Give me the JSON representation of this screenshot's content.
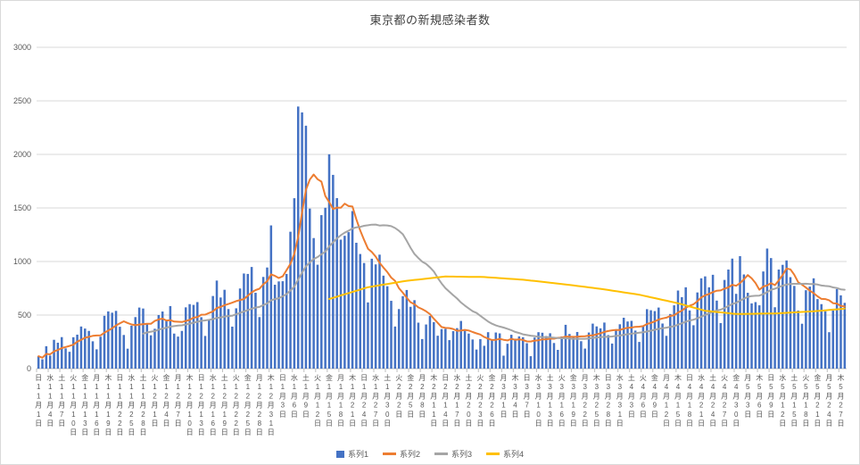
{
  "chart_data": {
    "type": "bar+line",
    "title": "東京都の新規感染者数",
    "grid": true,
    "legend_position": "bottom",
    "y_axis": {
      "min": 0,
      "max": 3000,
      "step": 500,
      "tick_labels": [
        "0",
        "500",
        "1000",
        "1500",
        "2000",
        "2500",
        "3000"
      ]
    },
    "x_axis": {
      "n_points": 209,
      "tick_every_days": 3,
      "tick_dows": "日水土火金月木日水土火金月木日水土火金月木日水土火金月木日水土火金月木日水土火金月木日水土火金月木日水土火金月木日水土火金月木日水土火金月木",
      "tick_dates": [
        "11月1日",
        "11月4日",
        "11月7日",
        "11月10日",
        "11月13日",
        "11月16日",
        "11月19日",
        "11月22日",
        "11月25日",
        "11月28日",
        "12月1日",
        "12月4日",
        "12月7日",
        "12月10日",
        "12月13日",
        "12月16日",
        "12月19日",
        "12月22日",
        "12月25日",
        "12月28日",
        "12月31日",
        "1月3日",
        "1月6日",
        "1月9日",
        "1月12日",
        "1月15日",
        "1月18日",
        "1月21日",
        "1月24日",
        "1月27日",
        "1月30日",
        "2月2日",
        "2月5日",
        "2月8日",
        "2月11日",
        "2月14日",
        "2月17日",
        "2月20日",
        "2月23日",
        "2月26日",
        "3月1日",
        "3月4日",
        "3月7日",
        "3月10日",
        "3月13日",
        "3月16日",
        "3月19日",
        "3月22日",
        "3月25日",
        "3月28日",
        "3月31日",
        "4月3日",
        "4月6日",
        "4月9日",
        "4月12日",
        "4月15日",
        "4月18日",
        "4月21日",
        "4月24日",
        "4月27日",
        "4月30日",
        "5月3日",
        "5月6日",
        "5月9日",
        "5月12日",
        "5月15日",
        "5月18日",
        "5月21日",
        "5月24日",
        "5月27日"
      ]
    },
    "series": [
      {
        "name": "系列1",
        "type": "bar",
        "color": "#4472C4",
        "values": [
          116,
          87,
          209,
          122,
          269,
          242,
          294,
          189,
          157,
          293,
          317,
          393,
          374,
          352,
          255,
          180,
          298,
          493,
          534,
          522,
          539,
          391,
          314,
          186,
          401,
          481,
          570,
          561,
          418,
          311,
          372,
          500,
          533,
          449,
          584,
          327,
          299,
          352,
          572,
          602,
          595,
          621,
          480,
          305,
          460,
          678,
          822,
          664,
          736,
          556,
          392,
          563,
          748,
          888,
          884,
          949,
          708,
          481,
          856,
          944,
          1337,
          783,
          814,
          816,
          884,
          1278,
          1591,
          2447,
          2392,
          2268,
          1494,
          1219,
          970,
          1433,
          1502,
          2001,
          1809,
          1592,
          1204,
          1240,
          1274,
          1471,
          1175,
          1070,
          986,
          618,
          1026,
          973,
          1064,
          868,
          769,
          633,
          393,
          556,
          676,
          734,
          577,
          639,
          429,
          276,
          412,
          491,
          434,
          307,
          369,
          371,
          266,
          350,
          378,
          445,
          353,
          327,
          272,
          178,
          275,
          213,
          340,
          270,
          337,
          329,
          121,
          232,
          316,
          279,
          301,
          293,
          237,
          116,
          290,
          340,
          335,
          304,
          330,
          239,
          175,
          300,
          409,
          323,
          303,
          342,
          256,
          187,
          337,
          420,
          394,
          376,
          430,
          313,
          234,
          364,
          414,
          475,
          440,
          446,
          355,
          249,
          399,
          555,
          545,
          537,
          570,
          421,
          306,
          510,
          591,
          729,
          667,
          759,
          543,
          405,
          711,
          843,
          861,
          759,
          876,
          635,
          425,
          828,
          925,
          1027,
          698,
          1050,
          879,
          708,
          609,
          621,
          591,
          907,
          1121,
          1032,
          573,
          925,
          969,
          1010,
          854,
          772,
          542,
          419,
          732,
          766,
          843,
          649,
          602,
          535,
          340,
          542,
          743,
          684,
          614
        ]
      },
      {
        "name": "系列2",
        "type": "line",
        "color": "#ED7D31",
        "derivation": "7-day moving average of 系列1"
      },
      {
        "name": "系列3",
        "type": "line",
        "color": "#A5A5A5",
        "derivation": "28-day moving average of 系列1"
      },
      {
        "name": "系列4",
        "type": "line",
        "color": "#FFC000",
        "derivation": "piecewise-linear through anchor points [day_index, value]",
        "anchor_points": [
          [
            75,
            650
          ],
          [
            85,
            760
          ],
          [
            95,
            820
          ],
          [
            105,
            860
          ],
          [
            115,
            855
          ],
          [
            125,
            830
          ],
          [
            135,
            790
          ],
          [
            145,
            745
          ],
          [
            155,
            690
          ],
          [
            165,
            610
          ],
          [
            172,
            540
          ],
          [
            180,
            510
          ],
          [
            190,
            515
          ],
          [
            200,
            535
          ],
          [
            208,
            560
          ]
        ]
      }
    ]
  }
}
